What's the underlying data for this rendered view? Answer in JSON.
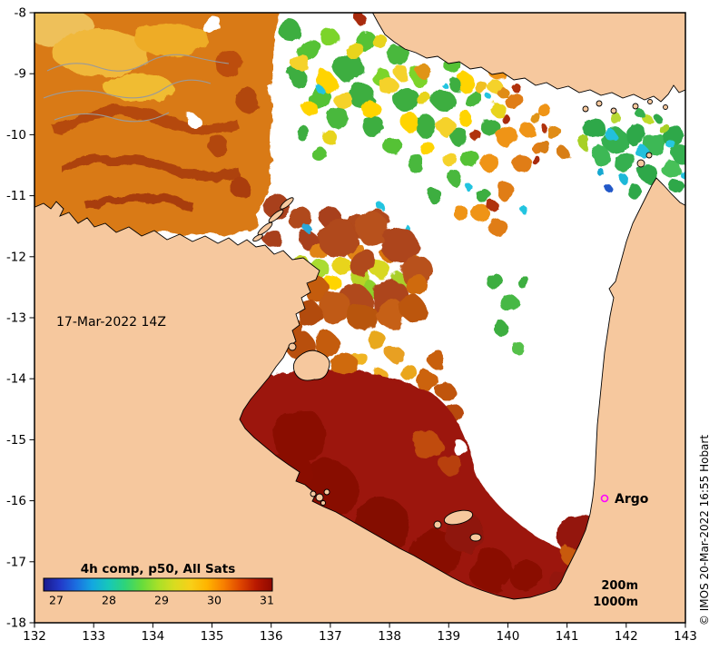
{
  "figure": {
    "date_label": "17-Mar-2022 14Z",
    "credit": "© IMOS 20-Mar-2022 16:55 Hobart",
    "argo": {
      "label": "Argo",
      "marker_color": "#ff00ff"
    },
    "depth_labels": {
      "d200": "200m",
      "d1000": "1000m"
    },
    "colors": {
      "land": "#f6c89e",
      "ocean_no_data": "#ffffff",
      "coastline": "#000000",
      "bathymetry_line": "#9a9a9a"
    }
  },
  "axes": {
    "x_tick_labels": [
      "132",
      "133",
      "134",
      "135",
      "136",
      "137",
      "138",
      "139",
      "140",
      "141",
      "142",
      "143"
    ],
    "y_tick_labels": [
      "-8",
      "-9",
      "-10",
      "-11",
      "-12",
      "-13",
      "-14",
      "-15",
      "-16",
      "-17",
      "-18"
    ],
    "x_range": [
      132,
      143
    ],
    "y_range": [
      -18,
      -8
    ]
  },
  "colorbar": {
    "title": "4h comp, p50, All Sats",
    "title_color": "#990000",
    "tick_labels": [
      "27",
      "28",
      "29",
      "30",
      "31"
    ],
    "gradient": [
      "#1a1a8c",
      "#2238c8",
      "#1b6fe0",
      "#13a8e0",
      "#17c8b8",
      "#2ed478",
      "#66dc3c",
      "#a8e028",
      "#d8dc20",
      "#f8d018",
      "#ffb400",
      "#f88000",
      "#e04800",
      "#b81800",
      "#8f0800"
    ]
  }
}
